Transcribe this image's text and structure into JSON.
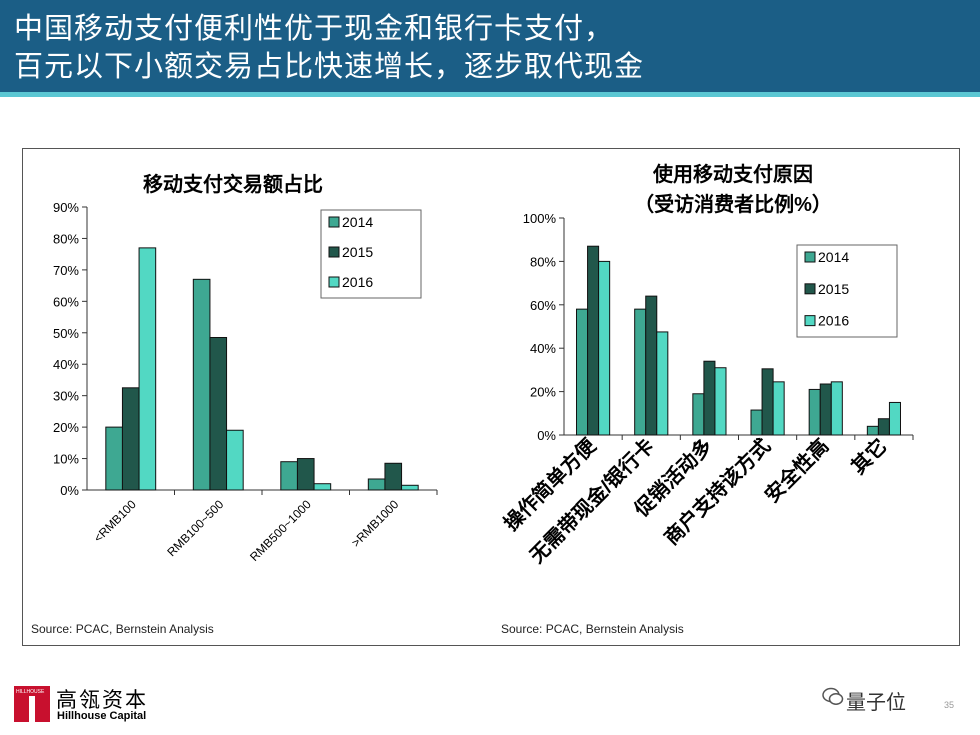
{
  "header": {
    "title_line1": "中国移动支付便利性优于现金和银行卡支付，",
    "title_line2": "百元以下小额交易占比快速增长，逐步取代现金"
  },
  "colors": {
    "s2014": "#3ea892",
    "s2015": "#21574b",
    "s2016": "#52d8c3",
    "header": "#1b5e86",
    "accent_line": "#5bc7d3"
  },
  "chart_data": [
    {
      "type": "bar",
      "title": "移动支付交易额占比",
      "categories": [
        "<RMB100",
        "RMB100~500",
        "RMB500~1000",
        ">RMB1000"
      ],
      "series": [
        {
          "name": "2014",
          "values": [
            20,
            67,
            9,
            3.5
          ]
        },
        {
          "name": "2015",
          "values": [
            32.5,
            48.5,
            10,
            8.5
          ]
        },
        {
          "name": "2016",
          "values": [
            77,
            19,
            2,
            1.5
          ]
        }
      ],
      "ylim": [
        0,
        90
      ],
      "yticks": [
        "0%",
        "10%",
        "20%",
        "30%",
        "40%",
        "50%",
        "60%",
        "70%",
        "80%",
        "90%"
      ],
      "legend": "top-right",
      "source": "Source: PCAC, Bernstein Analysis"
    },
    {
      "type": "bar",
      "title": "使用移动支付原因",
      "subtitle": "（受访消费者比例%）",
      "categories": [
        "操作简单方便",
        "无需带现金/银行卡",
        "促销活动多",
        "商户支持该方式",
        "安全性高",
        "其它"
      ],
      "series": [
        {
          "name": "2014",
          "values": [
            58,
            58,
            19,
            11.5,
            21,
            4
          ]
        },
        {
          "name": "2015",
          "values": [
            87,
            64,
            34,
            30.5,
            23.5,
            7.5
          ]
        },
        {
          "name": "2016",
          "values": [
            80,
            47.5,
            31,
            24.5,
            24.5,
            15
          ]
        }
      ],
      "ylim": [
        0,
        100
      ],
      "yticks": [
        "0%",
        "20%",
        "40%",
        "60%",
        "80%",
        "100%"
      ],
      "legend": "top-right",
      "source": "Source: PCAC, Bernstein Analysis"
    }
  ],
  "footer": {
    "logo_small": "HILLHOUSE",
    "logo_cn": "高瓴资本",
    "logo_en": "Hillhouse Capital",
    "watermark": "量子位",
    "page": "35"
  }
}
